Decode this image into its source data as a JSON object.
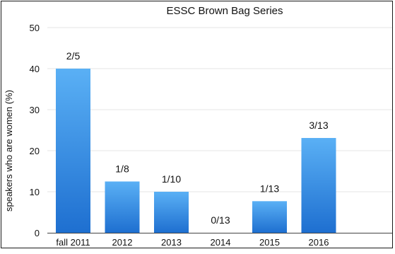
{
  "chart_data": {
    "type": "bar",
    "title": "ESSC Brown Bag Series",
    "xlabel": "",
    "ylabel": "speakers who are women (%)",
    "categories": [
      "fall 2011",
      "2012",
      "2013",
      "2014",
      "2015",
      "2016"
    ],
    "values": [
      40,
      12.5,
      10,
      0,
      7.7,
      23.1
    ],
    "data_labels": [
      "2/5",
      "1/8",
      "1/10",
      "0/13",
      "1/13",
      "3/13"
    ],
    "ylim": [
      0,
      50
    ],
    "yticks": [
      "0",
      "10",
      "20",
      "30",
      "40",
      "50"
    ],
    "grid": true,
    "colors": {
      "bar_top": "#5ab0f5",
      "bar_bottom": "#1e6fd0",
      "grid": "#e6e6e6",
      "axis": "#444444",
      "text": "#111111"
    }
  }
}
